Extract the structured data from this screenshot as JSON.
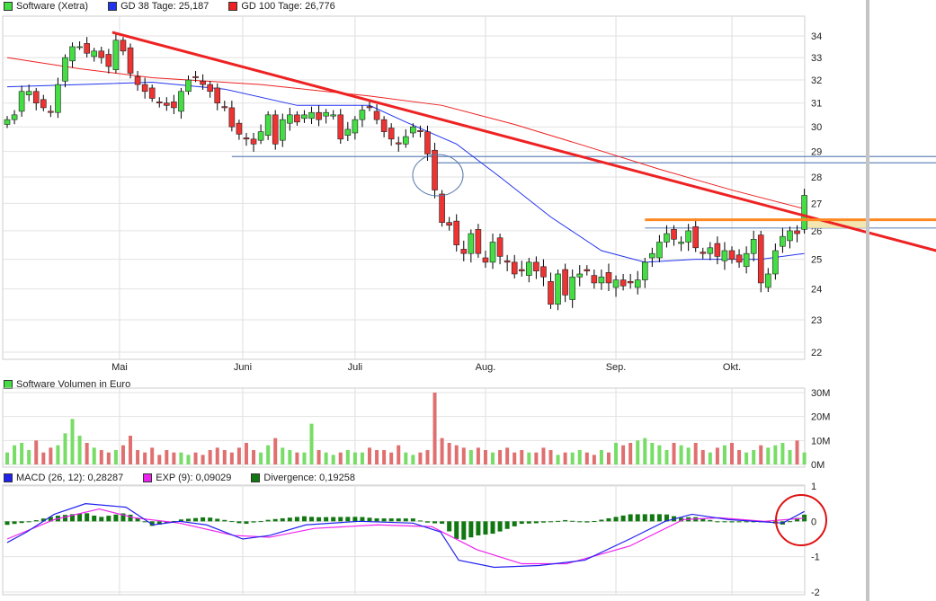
{
  "colors": {
    "up": "#44dd44",
    "down": "#ee3333",
    "gd38": "#2233ee",
    "gd100": "#ee2222",
    "trend": "#ee2222",
    "resistance": "#ff8822",
    "hline": "#6688bb",
    "macd": "#2222ee",
    "exp": "#ee22ee",
    "divergence": "#117711",
    "marker": "#dd1111"
  },
  "legend": {
    "price": "Software (Xetra)",
    "gd38": "GD 38 Tage: 25,187",
    "gd100": "GD 100 Tage: 26,776",
    "volume": "Software Volumen in Euro",
    "macd": "MACD (26, 12): 0,28287",
    "exp": "EXP (9): 0,09029",
    "divergence": "Divergence: 0,19258"
  },
  "chart_data": [
    {
      "type": "candlestick",
      "title": "Software (Xetra)",
      "yscale": "log",
      "ylim": [
        22,
        34
      ],
      "yticks": [
        "34",
        "33",
        "32",
        "31",
        "30",
        "29",
        "28",
        "27",
        "26",
        "25",
        "24",
        "23",
        "22"
      ],
      "months": [
        {
          "label": "Mai",
          "index": 15.5
        },
        {
          "label": "Juni",
          "index": 32.5
        },
        {
          "label": "Juli",
          "index": 48
        },
        {
          "label": "Aug.",
          "index": 66
        },
        {
          "label": "Sep.",
          "index": 84
        },
        {
          "label": "Okt.",
          "index": 100
        }
      ],
      "close": [
        30.3,
        30.5,
        31.5,
        31.5,
        31.0,
        30.8,
        30.6,
        31.8,
        33.0,
        33.5,
        33.5,
        33.2,
        33.3,
        33.0,
        32.6,
        33.8,
        33.3,
        32.3,
        31.8,
        31.5,
        31.2,
        31.0,
        30.9,
        30.8,
        31.5,
        32.0,
        32.1,
        31.8,
        31.5,
        31.0,
        30.8,
        30.0,
        29.7,
        29.5,
        29.3,
        29.8,
        30.5,
        29.3,
        30.3,
        30.5,
        30.2,
        30.5,
        30.6,
        30.3,
        30.6,
        30.5,
        29.5,
        29.9,
        30.3,
        30.7,
        30.8,
        30.3,
        29.8,
        29.5,
        29.3,
        29.6,
        30.0,
        29.8,
        28.9,
        27.5,
        26.3,
        26.2,
        25.5,
        25.2,
        25.9,
        25.2,
        24.9,
        25.6,
        25.1,
        24.9,
        24.5,
        24.6,
        24.9,
        24.6,
        24.4,
        23.5,
        24.5,
        23.8,
        24.4,
        24.5,
        24.6,
        24.2,
        24.4,
        24.2,
        24.3,
        24.1,
        24.2,
        24.3,
        24.9,
        25.2,
        25.6,
        25.9,
        25.7,
        25.6,
        26.0,
        25.4,
        25.2,
        25.4,
        25.1,
        25.3,
        25.0,
        24.9,
        25.2,
        25.7,
        24.2,
        24.5,
        25.3,
        25.8,
        26.0,
        25.9,
        27.3
      ],
      "gd38": [
        [
          0,
          31.7
        ],
        [
          10,
          31.8
        ],
        [
          20,
          31.9
        ],
        [
          30,
          31.6
        ],
        [
          40,
          30.9
        ],
        [
          50,
          30.9
        ],
        [
          55,
          30.2
        ],
        [
          62,
          29.3
        ],
        [
          68,
          28.0
        ],
        [
          75,
          26.5
        ],
        [
          82,
          25.3
        ],
        [
          88,
          24.9
        ],
        [
          95,
          25.0
        ],
        [
          104,
          25.0
        ],
        [
          110,
          25.2
        ]
      ],
      "gd100": [
        [
          0,
          33.0
        ],
        [
          10,
          32.5
        ],
        [
          20,
          32.1
        ],
        [
          35,
          31.8
        ],
        [
          50,
          31.3
        ],
        [
          60,
          30.9
        ],
        [
          70,
          30.1
        ],
        [
          80,
          29.2
        ],
        [
          90,
          28.3
        ],
        [
          100,
          27.5
        ],
        [
          110,
          26.8
        ]
      ],
      "trendline": [
        [
          14.5,
          34.17
        ],
        [
          128.2,
          25.3
        ]
      ],
      "resistance": {
        "from": 88,
        "value": 26.4
      },
      "hlines": [
        {
          "from": 31,
          "value": 28.8
        },
        {
          "from": 59,
          "value": 28.55
        },
        {
          "from": 88,
          "value": 26.1
        }
      ]
    },
    {
      "type": "bar",
      "title": "Software Volumen in Euro",
      "unit": "M",
      "ylim": [
        0,
        30
      ],
      "yticks": [
        "30M",
        "20M",
        "10M",
        "0M"
      ],
      "values": [
        5,
        8,
        9,
        6,
        10,
        5,
        7,
        8,
        13,
        19,
        12,
        9,
        7,
        6,
        5,
        6,
        8,
        12,
        6,
        5,
        7,
        4,
        6,
        5,
        5,
        4,
        5,
        4,
        6,
        7,
        6,
        5,
        7,
        9,
        6,
        5,
        8,
        11,
        7,
        6,
        5,
        5,
        17,
        6,
        5,
        4,
        5,
        6,
        5,
        5,
        7,
        6,
        6,
        5,
        8,
        5,
        4,
        5,
        6,
        30,
        11,
        9,
        8,
        7,
        6,
        7,
        6,
        5,
        6,
        7,
        5,
        6,
        5,
        5,
        7,
        6,
        4,
        5,
        5,
        6,
        5,
        4,
        6,
        5,
        9,
        8,
        9,
        10,
        11,
        9,
        8,
        6,
        9,
        8,
        7,
        9,
        6,
        5,
        7,
        8,
        9,
        6,
        5,
        6,
        8,
        7,
        8,
        9,
        6,
        10,
        5
      ]
    },
    {
      "type": "line",
      "title": "MACD",
      "ylim": [
        -2,
        1
      ],
      "yticks": [
        "1",
        "0",
        "-1",
        "-2"
      ],
      "macd": [
        [
          0,
          -0.6
        ],
        [
          2.7,
          -0.3
        ],
        [
          6.5,
          0.2
        ],
        [
          10.8,
          0.5
        ],
        [
          16.4,
          0.4
        ],
        [
          20.1,
          -0.1
        ],
        [
          23.8,
          0.0
        ],
        [
          27.5,
          -0.1
        ],
        [
          32.5,
          -0.5
        ],
        [
          36.2,
          -0.4
        ],
        [
          41.2,
          -0.1
        ],
        [
          48.6,
          0.0
        ],
        [
          56,
          -0.05
        ],
        [
          59.8,
          -0.3
        ],
        [
          62.3,
          -1.1
        ],
        [
          67.2,
          -1.3
        ],
        [
          73.4,
          -1.25
        ],
        [
          79.7,
          -1.1
        ],
        [
          85.9,
          -0.5
        ],
        [
          90.8,
          0.0
        ],
        [
          94.5,
          0.2
        ],
        [
          99.5,
          0.05
        ],
        [
          103.2,
          0.0
        ],
        [
          107,
          -0.05
        ],
        [
          110,
          0.28
        ]
      ],
      "exp": [
        [
          0,
          -0.5
        ],
        [
          6.5,
          0.05
        ],
        [
          12.7,
          0.35
        ],
        [
          17.6,
          0.1
        ],
        [
          23.8,
          -0.05
        ],
        [
          31.3,
          -0.4
        ],
        [
          36.2,
          -0.45
        ],
        [
          42.4,
          -0.2
        ],
        [
          51.1,
          -0.1
        ],
        [
          58.6,
          -0.15
        ],
        [
          64.8,
          -0.8
        ],
        [
          71,
          -1.2
        ],
        [
          77.2,
          -1.2
        ],
        [
          85.9,
          -0.7
        ],
        [
          93.3,
          0.05
        ],
        [
          98.3,
          0.1
        ],
        [
          104.5,
          0.0
        ],
        [
          110,
          0.09
        ]
      ]
    }
  ]
}
